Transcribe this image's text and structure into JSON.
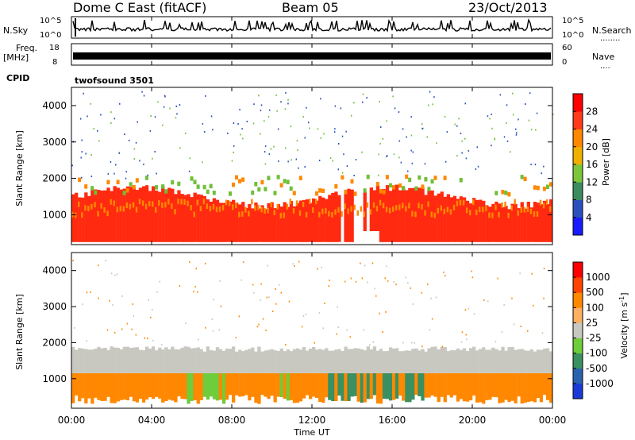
{
  "header": {
    "station": "Dome C East (fitACF)",
    "beam": "Beam 05",
    "date": "23/Oct/2013"
  },
  "strips": {
    "nsky_label": "N.Sky",
    "nsky_ticks": [
      "10^5",
      "10^0"
    ],
    "nsearch_label": "N.Search",
    "nsearch_ticks": [
      "10^5",
      "10^0"
    ],
    "nsearch_dots": "........",
    "freq_label_1": "Freq.",
    "freq_label_2": "[MHz]",
    "freq_ticks": [
      "18",
      "8"
    ],
    "nave_label": "Nave",
    "nave_ticks": [
      "60",
      "0"
    ],
    "nave_dots": "....",
    "cpid_label": "CPID",
    "cpid_value": "twofsound 3501"
  },
  "chart_data": [
    {
      "type": "heatmap",
      "panel": "power",
      "ylabel": "Slant Range [km]",
      "ylim": [
        180,
        4500
      ],
      "yticks": [
        "1000",
        "2000",
        "3000",
        "4000"
      ],
      "xticks": [
        "00:00",
        "04:00",
        "08:00",
        "12:00",
        "16:00",
        "20:00",
        "00:00"
      ],
      "colorbar": {
        "label": "Power [dB]",
        "levels": [
          "4",
          "8",
          "12",
          "16",
          "20",
          "24",
          "28"
        ],
        "colors": [
          "#1a1aff",
          "#2a50c0",
          "#3c8c60",
          "#7cc63a",
          "#f0b000",
          "#ff8800",
          "#ff3a1a",
          "#ff0000"
        ]
      },
      "colors": {
        "strong": "#ff2a10",
        "medium": "#ff8800",
        "weak": "#6fbf3a",
        "low": "#2a4fc0"
      },
      "bands": [
        {
          "range_km": [
            250,
            1500
          ],
          "level": "strong"
        },
        {
          "range_km": [
            1500,
            2100
          ],
          "level": "medium"
        },
        {
          "range_km": [
            2100,
            4400
          ],
          "level": "low"
        }
      ]
    },
    {
      "type": "heatmap",
      "panel": "velocity",
      "ylabel": "Slant Range [km]",
      "xlabel": "Time UT",
      "ylim": [
        180,
        4500
      ],
      "yticks": [
        "1000",
        "2000",
        "3000",
        "4000"
      ],
      "xticks": [
        "00:00",
        "04:00",
        "08:00",
        "12:00",
        "16:00",
        "20:00",
        "00:00"
      ],
      "colorbar": {
        "label": "Velocity [m s^-1]",
        "levels": [
          "1000",
          "500",
          "100",
          "25",
          "-25",
          "-100",
          "-500",
          "-1000"
        ],
        "colors": [
          "#1a3ad8",
          "#2a62b0",
          "#3a9060",
          "#6fcc3a",
          "#c8c8c0",
          "#ffb060",
          "#ff8800",
          "#ff4400",
          "#ff0000"
        ]
      },
      "colors": {
        "gray": "#c8c8c0",
        "orange": "#ff8800",
        "green": "#3a9060",
        "light_green": "#6fcc3a"
      },
      "bands": [
        {
          "range_km": [
            300,
            1100
          ],
          "level": "orange"
        },
        {
          "range_km": [
            1100,
            1800
          ],
          "level": "gray"
        },
        {
          "range_km": [
            1800,
            4400
          ],
          "level": "sparse"
        }
      ]
    }
  ]
}
